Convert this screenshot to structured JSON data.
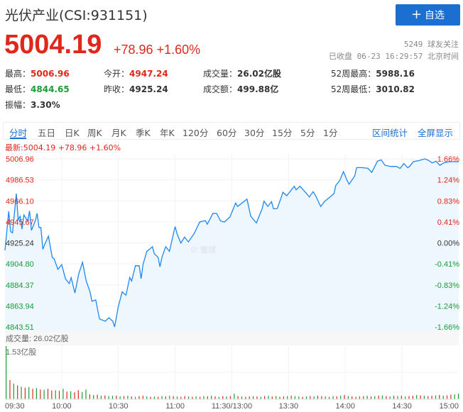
{
  "header": {
    "title": "光伏产业(CSI:931151)",
    "add_button": "自选",
    "add_icon": "plus-icon",
    "price": "5004.19",
    "change": "+78.96",
    "change_pct": "+1.60%",
    "followers": "5249 球友关注",
    "status": "已收盘 06-23 16:29:57 北京时间"
  },
  "stats": [
    {
      "label": "最高：",
      "value": "5006.96",
      "color": "red"
    },
    {
      "label": "今开：",
      "value": "4947.24",
      "color": "red"
    },
    {
      "label": "成交量：",
      "value": "26.02亿股",
      "color": ""
    },
    {
      "label": "52周最高：",
      "value": "5988.16",
      "color": ""
    },
    {
      "label": "最低：",
      "value": "4844.65",
      "color": "green"
    },
    {
      "label": "昨收：",
      "value": "4925.24",
      "color": ""
    },
    {
      "label": "成交额：",
      "value": "499.88亿",
      "color": ""
    },
    {
      "label": "52周最低：",
      "value": "3010.82",
      "color": ""
    },
    {
      "label": "振幅：",
      "value": "3.30%",
      "color": ""
    }
  ],
  "tabs": [
    "分时",
    "五日",
    "日K",
    "周K",
    "月K",
    "季K",
    "年K",
    "120分",
    "60分",
    "30分",
    "15分",
    "5分",
    "1分"
  ],
  "active_tab": "分时",
  "tab_links": [
    "区间统计",
    "全屏显示"
  ],
  "chart_data": {
    "type": "line",
    "latest_label": "最新:5004.19 +78.96 +1.60%",
    "prev_close": 4925.24,
    "ylim": [
      4843.51,
      5006.96
    ],
    "y_ticks_left": [
      "5006.96",
      "4986.53",
      "4966.10",
      "4945.67",
      "4925.24",
      "4904.80",
      "4884.37",
      "4863.94",
      "4843.51"
    ],
    "y_ticks_right": [
      "1.66%",
      "1.24%",
      "0.83%",
      "0.41%",
      "0.00%",
      "-0.41%",
      "-0.83%",
      "-1.24%",
      "-1.66%"
    ],
    "x_ticks": [
      "09:30",
      "10:00",
      "10:30",
      "11:00",
      "11:30/13:00",
      "13:30",
      "14:00",
      "14:30",
      "15:00"
    ],
    "colors": {
      "line": "#1e88f0",
      "fill": "#eef6fe",
      "up": "#e0271b",
      "down": "#1a9c38"
    },
    "watermark": "雪球",
    "series": [
      [
        "09:30",
        4917.9
      ],
      [
        "09:32",
        4955.9
      ],
      [
        "09:33",
        4936.3
      ],
      [
        "09:34",
        4935.1
      ],
      [
        "09:36",
        4973.1
      ],
      [
        "09:37",
        4947.8
      ],
      [
        "09:38",
        4951.2
      ],
      [
        "09:39",
        4938.6
      ],
      [
        "09:40",
        4952.4
      ],
      [
        "09:42",
        4946.6
      ],
      [
        "09:43",
        4956.3
      ],
      [
        "09:44",
        4937.4
      ],
      [
        "09:46",
        4946.6
      ],
      [
        "09:47",
        4954.0
      ],
      [
        "09:48",
        4940.2
      ],
      [
        "09:49",
        4940.2
      ],
      [
        "09:50",
        4919.0
      ],
      [
        "09:51",
        4923.6
      ],
      [
        "09:53",
        4931.7
      ],
      [
        "09:55",
        4911.0
      ],
      [
        "09:56",
        4909.8
      ],
      [
        "09:58",
        4899.5
      ],
      [
        "10:00",
        4904.1
      ],
      [
        "10:02",
        4890.3
      ],
      [
        "10:04",
        4885.7
      ],
      [
        "10:05",
        4891.4
      ],
      [
        "10:07",
        4876.5
      ],
      [
        "10:09",
        4894.9
      ],
      [
        "10:11",
        4906.4
      ],
      [
        "10:13",
        4888.0
      ],
      [
        "10:15",
        4877.6
      ],
      [
        "10:16",
        4868.4
      ],
      [
        "10:18",
        4869.8
      ],
      [
        "10:20",
        4851.3
      ],
      [
        "10:23",
        4849.0
      ],
      [
        "10:25",
        4852.5
      ],
      [
        "10:27",
        4849.0
      ],
      [
        "10:28",
        4843.6
      ],
      [
        "10:30",
        4864.0
      ],
      [
        "10:32",
        4877.6
      ],
      [
        "10:34",
        4874.4
      ],
      [
        "10:36",
        4891.6
      ],
      [
        "10:37",
        4888.2
      ],
      [
        "10:39",
        4903.0
      ],
      [
        "10:41",
        4903.0
      ],
      [
        "10:42",
        4890.4
      ],
      [
        "10:43",
        4904.3
      ],
      [
        "10:45",
        4916.9
      ],
      [
        "10:48",
        4921.5
      ],
      [
        "10:49",
        4914.7
      ],
      [
        "10:51",
        4911.2
      ],
      [
        "10:52",
        4902.0
      ],
      [
        "10:53",
        4911.2
      ],
      [
        "10:55",
        4921.5
      ],
      [
        "10:57",
        4917.0
      ],
      [
        "11:00",
        4941.1
      ],
      [
        "11:01",
        4934.2
      ],
      [
        "11:03",
        4925.0
      ],
      [
        "11:05",
        4930.8
      ],
      [
        "11:07",
        4926.2
      ],
      [
        "11:10",
        4934.2
      ],
      [
        "11:13",
        4945.5
      ],
      [
        "11:16",
        4946.9
      ],
      [
        "11:17",
        4943.4
      ],
      [
        "11:20",
        4954.0
      ],
      [
        "11:22",
        4953.8
      ],
      [
        "11:24",
        4946.6
      ],
      [
        "11:26",
        4945.5
      ],
      [
        "11:29",
        4950.4
      ],
      [
        "13:02",
        4964.0
      ],
      [
        "13:03",
        4960.7
      ],
      [
        "13:08",
        4967.8
      ],
      [
        "13:10",
        4951.2
      ],
      [
        "13:13",
        4944.6
      ],
      [
        "13:16",
        4958.4
      ],
      [
        "13:17",
        4965.8
      ],
      [
        "13:19",
        4960.7
      ],
      [
        "13:21",
        4965.3
      ],
      [
        "13:22",
        4958.4
      ],
      [
        "13:24",
        4958.6
      ],
      [
        "13:26",
        4968.8
      ],
      [
        "13:27",
        4974.5
      ],
      [
        "13:29",
        4971.1
      ],
      [
        "13:33",
        4980.3
      ],
      [
        "13:34",
        4976.8
      ],
      [
        "13:36",
        4980.3
      ],
      [
        "13:40",
        4972.2
      ],
      [
        "13:41",
        4969.9
      ],
      [
        "13:43",
        4975.0
      ],
      [
        "13:44",
        4972.2
      ],
      [
        "13:47",
        4960.7
      ],
      [
        "13:49",
        4965.5
      ],
      [
        "13:51",
        4968.5
      ],
      [
        "13:54",
        4973.1
      ],
      [
        "13:55",
        4981.2
      ],
      [
        "13:57",
        4985.8
      ],
      [
        "13:59",
        4994.5
      ],
      [
        "14:01",
        4985.8
      ],
      [
        "14:02",
        4982.3
      ],
      [
        "14:05",
        4990.4
      ],
      [
        "14:06",
        4998.4
      ],
      [
        "14:09",
        4998.4
      ],
      [
        "14:12",
        4997.7
      ],
      [
        "14:14",
        4993.8
      ],
      [
        "14:17",
        5004.7
      ],
      [
        "14:19",
        5006.0
      ],
      [
        "14:21",
        5000.7
      ],
      [
        "14:24",
        4999.6
      ],
      [
        "14:27",
        4999.6
      ],
      [
        "14:29",
        4997.7
      ],
      [
        "14:31",
        5002.4
      ],
      [
        "14:33",
        4998.4
      ],
      [
        "14:34",
        4999.6
      ],
      [
        "14:36",
        5004.2
      ],
      [
        "14:39",
        5005.3
      ],
      [
        "14:42",
        5006.96
      ],
      [
        "14:44",
        5005.5
      ],
      [
        "14:46",
        5003.0
      ],
      [
        "14:48",
        5004.7
      ],
      [
        "14:50",
        5000.7
      ],
      [
        "14:52",
        5003.0
      ],
      [
        "14:55",
        5004.2
      ],
      [
        "15:00",
        5004.19
      ]
    ],
    "volume": {
      "label": "成交量: 26.02亿股",
      "max_label": "1.53亿股",
      "max": 1.53,
      "values": [
        1.53,
        0.55,
        0.45,
        0.4,
        0.36,
        0.33,
        0.35,
        0.3,
        0.32,
        0.28,
        0.27,
        0.3,
        0.25,
        0.26,
        0.24,
        0.3,
        0.22,
        0.23,
        0.2,
        0.26,
        0.21,
        0.28,
        0.14,
        0.12,
        0.13,
        0.1,
        0.11,
        0.09,
        0.1,
        0.1,
        0.08,
        0.09,
        0.1,
        0.08,
        0.07,
        0.09,
        0.1,
        0.08,
        0.07,
        0.08,
        0.07,
        0.09,
        0.08,
        0.1,
        0.09,
        0.08,
        0.07,
        0.09,
        0.08,
        0.07,
        0.08,
        0.07,
        0.09,
        0.08,
        0.1,
        0.08,
        0.07,
        0.09,
        0.08,
        0.09,
        0.16,
        0.09,
        0.08,
        0.07,
        0.08,
        0.09,
        0.08,
        0.07,
        0.09,
        0.1,
        0.08,
        0.09,
        0.07,
        0.08,
        0.09,
        0.1,
        0.09,
        0.08,
        0.07,
        0.08,
        0.09,
        0.08,
        0.1,
        0.09,
        0.08,
        0.07,
        0.09,
        0.08,
        0.1,
        0.12,
        0.09,
        0.08,
        0.07,
        0.08,
        0.09,
        0.1,
        0.08,
        0.09,
        0.1,
        0.11,
        0.09,
        0.08,
        0.1,
        0.09,
        0.1,
        0.08,
        0.09,
        0.1,
        0.12,
        0.11,
        0.1,
        0.09,
        0.1,
        0.11,
        0.12,
        0.1,
        0.11,
        0.13,
        0.14,
        0.16
      ],
      "directions": "grgrgrgrgrgrrgrgrgrrggrgrgrggrgrgrgrrgrgrgrgrgrrgrgrgrgrgrgrgrgrrgrgrgrgrrgrggrgrgrrgrgrgrgrrgrgrgrgrgrgrgrrgrgrrgrgrr"
    }
  }
}
